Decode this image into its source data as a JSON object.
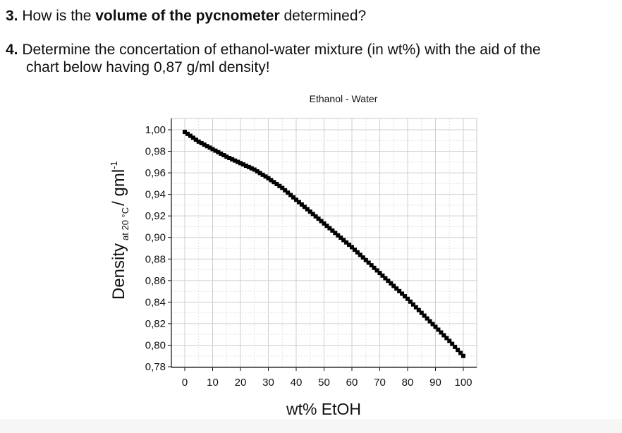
{
  "questions": [
    {
      "number": "3.",
      "pre": "How is the ",
      "bold": "volume of the pycnometer",
      "post": " determined?"
    },
    {
      "number": "4.",
      "line1": "Determine the concertation of ethanol-water mixture (in wt%) with the aid of the",
      "line2": "chart below having 0,87 g/ml density!"
    }
  ],
  "chart_data": {
    "type": "line",
    "title": "Ethanol - Water",
    "xlabel": "wt% EtOH",
    "ylabel": {
      "main": "Density",
      "subscript": "at 20 °C",
      "unit": "/ gml",
      "superscript": "-1"
    },
    "xlim": [
      0,
      100
    ],
    "ylim": [
      0.78,
      1.0
    ],
    "xticks": [
      "0",
      "10",
      "20",
      "30",
      "40",
      "50",
      "60",
      "70",
      "80",
      "90",
      "100"
    ],
    "yticks": [
      "0,78",
      "0,80",
      "0,82",
      "0,84",
      "0,86",
      "0,88",
      "0,90",
      "0,92",
      "0,94",
      "0,96",
      "0,98",
      "1,00"
    ],
    "grid": true,
    "marker_color": "#000000",
    "series": [
      {
        "x": [
          0,
          5,
          10,
          15,
          20,
          25,
          30,
          35,
          40,
          45,
          50,
          55,
          60,
          65,
          70,
          75,
          80,
          85,
          90,
          95,
          100
        ],
        "y": [
          0.998,
          0.989,
          0.982,
          0.975,
          0.969,
          0.963,
          0.955,
          0.946,
          0.935,
          0.924,
          0.913,
          0.902,
          0.891,
          0.879,
          0.867,
          0.855,
          0.843,
          0.83,
          0.817,
          0.804,
          0.79
        ]
      }
    ]
  }
}
